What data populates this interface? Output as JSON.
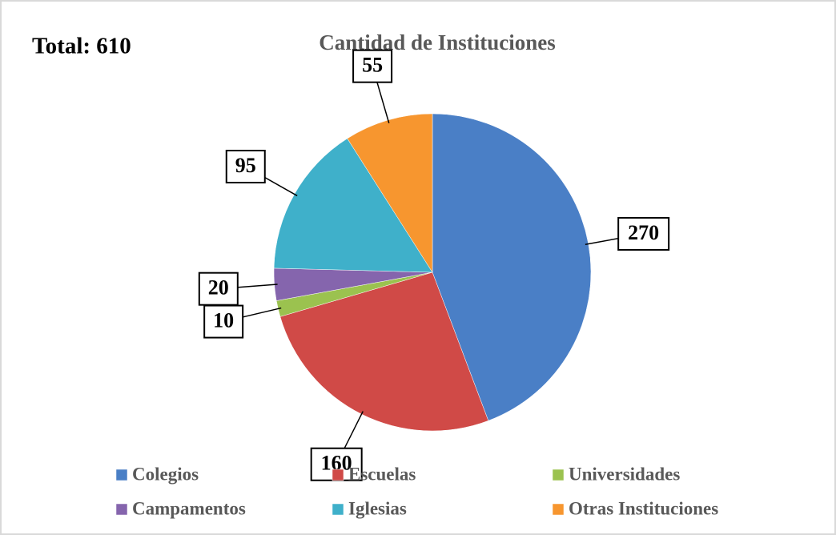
{
  "chart_data": {
    "type": "pie",
    "title": "Cantidad de Instituciones",
    "annotation": "Total: 610",
    "categories": [
      "Colegios",
      "Escuelas",
      "Universidades",
      "Campamentos",
      "Iglesias",
      "Otras Instituciones"
    ],
    "values": [
      270,
      160,
      10,
      20,
      95,
      55
    ],
    "colors": [
      "#4a7fc6",
      "#d04a47",
      "#9bc24f",
      "#8565ad",
      "#3fb0ca",
      "#f7962f"
    ]
  }
}
